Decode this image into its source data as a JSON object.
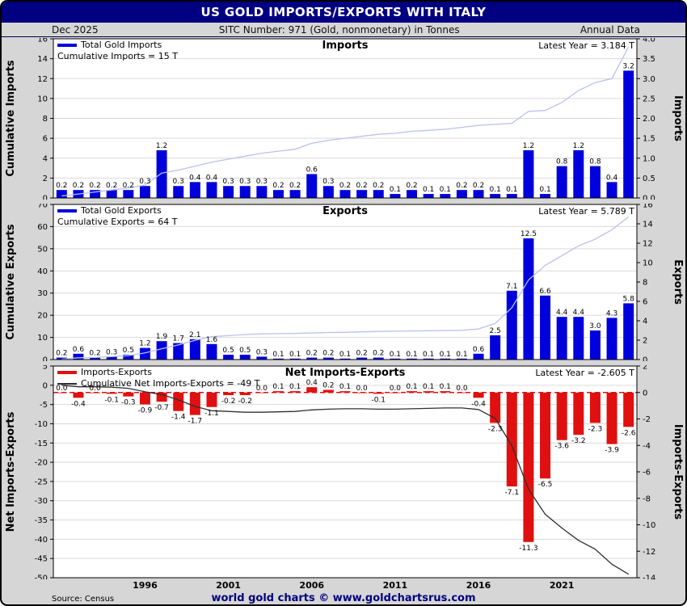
{
  "header": {
    "title": "US GOLD IMPORTS/EXPORTS WITH ITALY",
    "date": "Dec  2025",
    "subtitle": "SITC Number: 971 (Gold, nonmonetary) in Tonnes",
    "right": "Annual Data"
  },
  "footer": {
    "source": "Source: Census",
    "brand": "world gold charts © www.goldchartsrus.com"
  },
  "colors": {
    "navy": "#000080",
    "bar_blue": "#0000dd",
    "bar_red": "#e01010",
    "cumulative_light": "#b9c2ee",
    "cumulative_dark": "#303030",
    "grid": "#d9d9d9"
  },
  "x_axis": {
    "start_year": 1991,
    "tick_labels": [
      {
        "index": 5,
        "label": "1996"
      },
      {
        "index": 10,
        "label": "2001"
      },
      {
        "index": 15,
        "label": "2006"
      },
      {
        "index": 20,
        "label": "2011"
      },
      {
        "index": 25,
        "label": "2016"
      },
      {
        "index": 30,
        "label": "2021"
      }
    ]
  },
  "chart_data": [
    {
      "type": "bar",
      "panel": "imports",
      "title": "Imports",
      "latest_label": "Latest Year = 3.184 T",
      "legend": [
        {
          "swatch": "#0000dd",
          "thick": true,
          "label": "Total Gold Imports"
        },
        {
          "swatch": null,
          "thick": false,
          "label": "Cumulative Imports = 15 T"
        }
      ],
      "left_axis": {
        "label": "Cumulative Imports",
        "min": 0,
        "max": 16,
        "step": 2,
        "decimals": 0
      },
      "right_axis": {
        "label": "Imports",
        "min": 0,
        "max": 4,
        "step": 0.5,
        "decimals": 1
      },
      "bar_color": "#0000dd",
      "line_color": "#b9c2ee",
      "zero_dashed": false,
      "values": [
        0.2,
        0.2,
        0.2,
        0.2,
        0.2,
        0.3,
        1.2,
        0.3,
        0.4,
        0.4,
        0.3,
        0.3,
        0.3,
        0.2,
        0.2,
        0.6,
        0.3,
        0.2,
        0.2,
        0.2,
        0.1,
        0.2,
        0.1,
        0.1,
        0.2,
        0.2,
        0.1,
        0.1,
        1.2,
        0.1,
        0.8,
        1.2,
        0.8,
        0.4,
        3.2
      ]
    },
    {
      "type": "bar",
      "panel": "exports",
      "title": "Exports",
      "latest_label": "Latest Year = 5.789 T",
      "legend": [
        {
          "swatch": "#0000dd",
          "thick": true,
          "label": "Total Gold Exports"
        },
        {
          "swatch": null,
          "thick": false,
          "label": "Cumulative Exports = 64 T"
        }
      ],
      "left_axis": {
        "label": "Cumulative Exports",
        "min": 0,
        "max": 70,
        "step": 10,
        "decimals": 0
      },
      "right_axis": {
        "label": "Exports",
        "min": 0,
        "max": 16,
        "step": 2,
        "decimals": 0
      },
      "bar_color": "#0000dd",
      "line_color": "#b9c2ee",
      "zero_dashed": false,
      "values": [
        0.2,
        0.6,
        0.2,
        0.3,
        0.5,
        1.2,
        1.9,
        1.7,
        2.1,
        1.6,
        0.5,
        0.5,
        0.3,
        0.1,
        0.1,
        0.2,
        0.2,
        0.1,
        0.2,
        0.2,
        0.1,
        0.1,
        0.1,
        0.1,
        0.1,
        0.6,
        2.5,
        7.1,
        12.5,
        6.6,
        4.4,
        4.4,
        3.0,
        4.3,
        5.8
      ]
    },
    {
      "type": "bar",
      "panel": "net",
      "title": "Net Imports-Exports",
      "latest_label": "Latest Year = -2.605 T",
      "legend": [
        {
          "swatch": "#e01010",
          "thick": true,
          "label": "Imports-Exports"
        },
        {
          "swatch": "#303030",
          "thick": false,
          "label": "Cumulative Net Imports-Exports = -49 T"
        }
      ],
      "left_axis": {
        "label": "Net Imports-Exports",
        "min": -50,
        "max": 5,
        "step": 5,
        "decimals": 0
      },
      "right_axis": {
        "label": "Imports-Exports",
        "min": -14,
        "max": 2,
        "step": 2,
        "decimals": 0
      },
      "bar_color": "#e01010",
      "line_color": "#303030",
      "zero_dashed": true,
      "values": [
        0.0,
        -0.4,
        0.0,
        -0.1,
        -0.3,
        -0.9,
        -0.7,
        -1.4,
        -1.7,
        -1.1,
        -0.2,
        -0.2,
        0.0,
        0.1,
        0.1,
        0.4,
        0.2,
        0.1,
        0.0,
        -0.1,
        0.0,
        0.1,
        0.1,
        0.1,
        0.0,
        -0.4,
        -2.3,
        -7.1,
        -11.3,
        -6.5,
        -3.6,
        -3.2,
        -2.3,
        -3.9,
        -2.6
      ]
    }
  ]
}
